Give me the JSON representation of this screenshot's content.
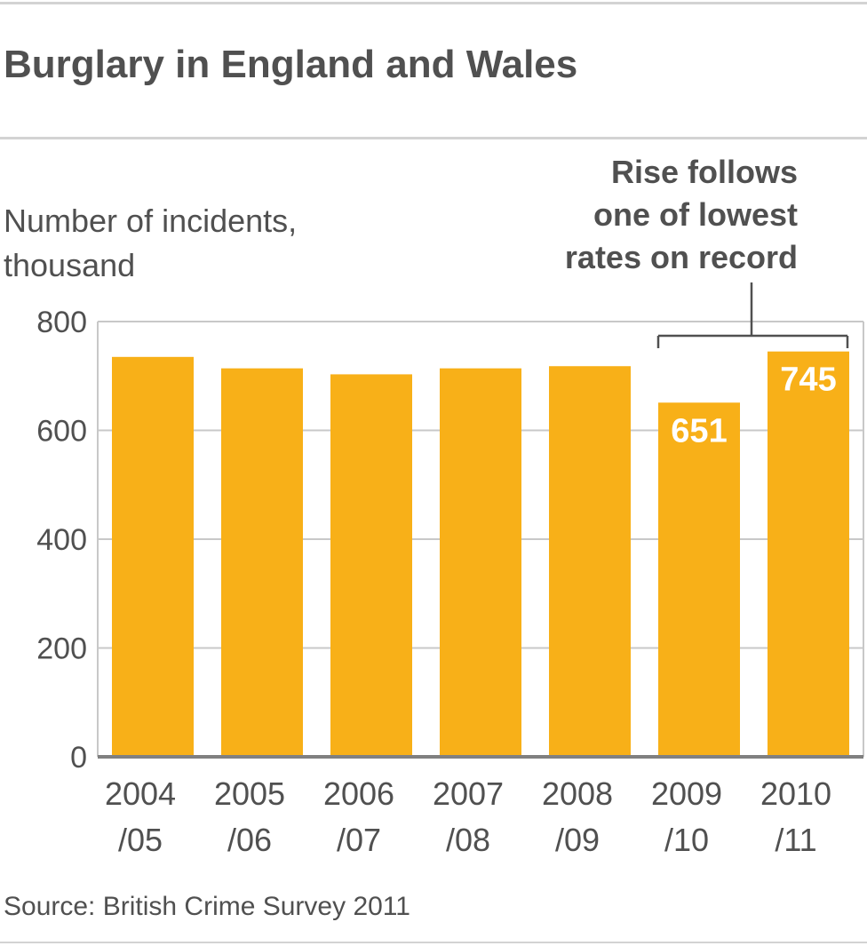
{
  "header": {
    "title": "Burglary in England and Wales"
  },
  "source": "Source: British Crime Survey 2011",
  "colors": {
    "bar": "#F8B018",
    "grid": "#c8c8c8",
    "axis": "#808080",
    "text": "#505050",
    "bar_label": "#ffffff"
  },
  "chart_data": {
    "type": "bar",
    "title": "Burglary in England and Wales",
    "ylabel": "Number of incidents, thousand",
    "xlabel": "",
    "categories": [
      "2004/05",
      "2005/06",
      "2006/07",
      "2007/08",
      "2008/09",
      "2009/10",
      "2010/11"
    ],
    "category_lines": [
      [
        "2004",
        "/05"
      ],
      [
        "2005",
        "/06"
      ],
      [
        "2006",
        "/07"
      ],
      [
        "2007",
        "/08"
      ],
      [
        "2008",
        "/09"
      ],
      [
        "2009",
        "/10"
      ],
      [
        "2010",
        "/11"
      ]
    ],
    "values": [
      735,
      714,
      703,
      714,
      718,
      651,
      745
    ],
    "data_labels": [
      null,
      null,
      null,
      null,
      null,
      "651",
      "745"
    ],
    "ylim": [
      0,
      800
    ],
    "yticks": [
      0,
      200,
      400,
      600,
      800
    ],
    "grid": true,
    "annotation": {
      "lines": [
        "Rise follows",
        "one of lowest",
        "rates on record"
      ],
      "bracket_categories": [
        "2009/10",
        "2010/11"
      ]
    }
  }
}
